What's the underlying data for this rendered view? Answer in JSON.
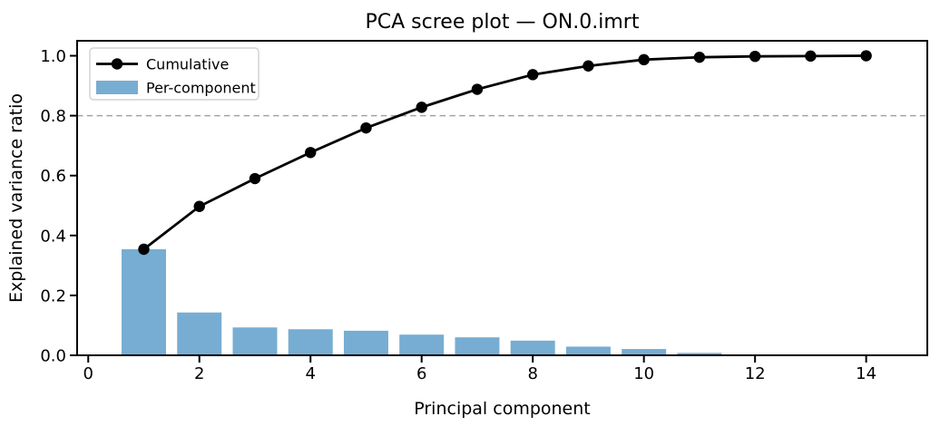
{
  "figure": {
    "background": "#ffffff"
  },
  "chart_data": {
    "type": "bar+line",
    "title": "PCA scree plot — ON.0.imrt",
    "xlabel": "Principal component",
    "ylabel": "Explained variance ratio",
    "x": [
      1,
      2,
      3,
      4,
      5,
      6,
      7,
      8,
      9,
      10,
      11,
      12,
      13,
      14
    ],
    "series": [
      {
        "name": "Cumulative",
        "type": "line",
        "color": "#000000",
        "marker": "circle",
        "values": [
          0.354,
          0.497,
          0.59,
          0.677,
          0.759,
          0.828,
          0.888,
          0.937,
          0.966,
          0.987,
          0.995,
          0.998,
          0.999,
          1.0
        ]
      },
      {
        "name": "Per-component",
        "type": "bar",
        "color": "#77add2",
        "values": [
          0.354,
          0.143,
          0.093,
          0.087,
          0.082,
          0.069,
          0.06,
          0.049,
          0.029,
          0.021,
          0.008,
          0.003,
          0.001,
          0.001
        ]
      }
    ],
    "reference_line": {
      "y": 0.8,
      "style": "dashed",
      "color": "#a3a3a3"
    },
    "xlim": [
      -0.2,
      15.1
    ],
    "ylim": [
      0,
      1.05
    ],
    "xticks": [
      0,
      2,
      4,
      6,
      8,
      10,
      12,
      14
    ],
    "yticks": [
      0.0,
      0.2,
      0.4,
      0.6,
      0.8,
      1.0
    ],
    "ytick_labels": [
      "0.0",
      "0.2",
      "0.4",
      "0.6",
      "0.8",
      "1.0"
    ],
    "bar_width": 0.8,
    "grid": false,
    "legend": {
      "position": "upper-left",
      "entries": [
        "Cumulative",
        "Per-component"
      ],
      "border_color": "#d4d4d4",
      "background": "#ffffff"
    }
  }
}
